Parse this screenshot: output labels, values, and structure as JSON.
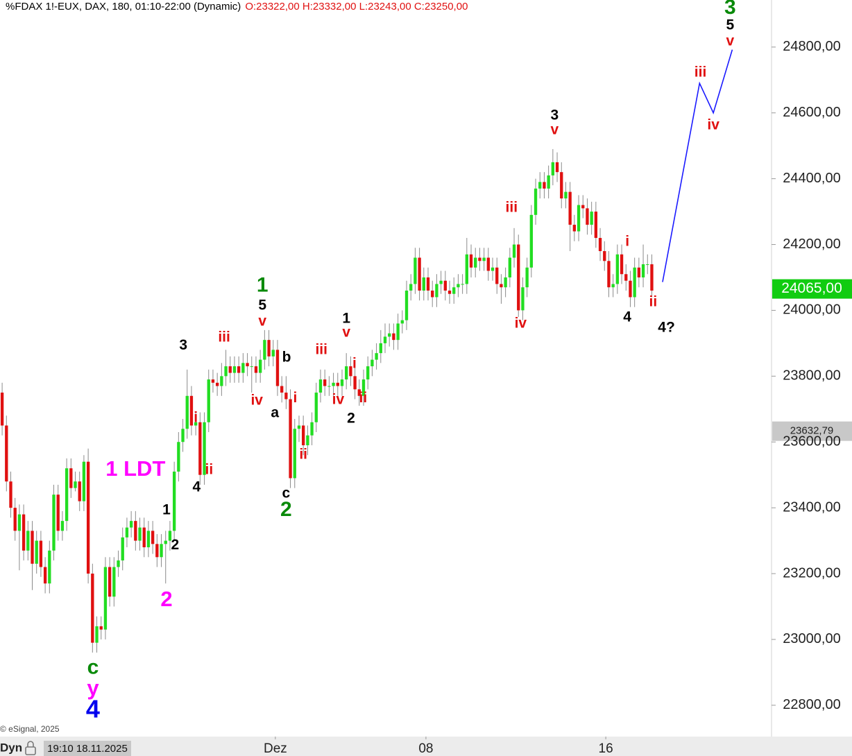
{
  "chart_data": {
    "type": "candlestick",
    "title": "%FDAX 1!-EUX, DAX, 180, 01:10-22:00 (Dynamic)",
    "ohlc_text": "O:23322,00 H:23332,00 L:23243,00 C:23250,00",
    "copyright": "© eSignal, 2025",
    "mode": "Dyn",
    "start_label": "19:10 18.11.2025",
    "up_color": "#22dd22",
    "down_color": "#e01010",
    "wick_color": "#8a8a8a",
    "xlim": [
      -0.5,
      178.5
    ],
    "ylim": [
      22709,
      24943
    ],
    "yticks": [
      {
        "value": 22800,
        "label": "22800,00"
      },
      {
        "value": 23000,
        "label": "23000,00"
      },
      {
        "value": 23200,
        "label": "23200,00"
      },
      {
        "value": 23400,
        "label": "23400,00"
      },
      {
        "value": 23600,
        "label": "23600,00"
      },
      {
        "value": 23800,
        "label": "23800,00"
      },
      {
        "value": 24000,
        "label": "24000,00"
      },
      {
        "value": 24200,
        "label": "24200,00"
      },
      {
        "value": 24400,
        "label": "24400,00"
      },
      {
        "value": 24600,
        "label": "24600,00"
      },
      {
        "value": 24800,
        "label": "24800,00"
      }
    ],
    "xticks": [
      {
        "value": 63.5,
        "label": "Dez"
      },
      {
        "value": 98.5,
        "label": "08"
      },
      {
        "value": 140.3,
        "label": "16"
      }
    ],
    "price_markers": [
      {
        "value": 24065,
        "label": "24065,00",
        "color": "#11cc11",
        "text_color": "#ffffff"
      },
      {
        "value": 23632.79,
        "label": "23632,79",
        "color": "#c8c8c8",
        "text_color": "#222222"
      }
    ],
    "ohlc": [
      [
        23750,
        23780,
        23620,
        23650
      ],
      [
        23650,
        23680,
        23450,
        23480
      ],
      [
        23480,
        23510,
        23370,
        23400
      ],
      [
        23400,
        23430,
        23300,
        23330
      ],
      [
        23330,
        23410,
        23210,
        23380
      ],
      [
        23380,
        23410,
        23240,
        23270
      ],
      [
        23270,
        23360,
        23240,
        23330
      ],
      [
        23330,
        23360,
        23150,
        23230
      ],
      [
        23230,
        23330,
        23200,
        23300
      ],
      [
        23300,
        23330,
        23190,
        23220
      ],
      [
        23220,
        23250,
        23140,
        23170
      ],
      [
        23170,
        23300,
        23140,
        23270
      ],
      [
        23270,
        23470,
        23240,
        23440
      ],
      [
        23440,
        23470,
        23300,
        23330
      ],
      [
        23330,
        23390,
        23300,
        23360
      ],
      [
        23360,
        23550,
        23330,
        23520
      ],
      [
        23520,
        23550,
        23430,
        23460
      ],
      [
        23460,
        23510,
        23450,
        23480
      ],
      [
        23480,
        23510,
        23390,
        23420
      ],
      [
        23420,
        23560,
        23390,
        23540
      ],
      [
        23540,
        23580,
        23170,
        23200
      ],
      [
        23200,
        23230,
        22960,
        22990
      ],
      [
        22990,
        23070,
        22960,
        23040
      ],
      [
        23040,
        23070,
        23000,
        23030
      ],
      [
        23030,
        23250,
        23000,
        23220
      ],
      [
        23220,
        23250,
        23100,
        23130
      ],
      [
        23130,
        23250,
        23100,
        23220
      ],
      [
        23220,
        23270,
        23190,
        23240
      ],
      [
        23240,
        23340,
        23210,
        23310
      ],
      [
        23310,
        23370,
        23280,
        23340
      ],
      [
        23340,
        23390,
        23310,
        23360
      ],
      [
        23360,
        23390,
        23270,
        23300
      ],
      [
        23300,
        23370,
        23270,
        23340
      ],
      [
        23340,
        23370,
        23250,
        23280
      ],
      [
        23280,
        23360,
        23250,
        23330
      ],
      [
        23330,
        23360,
        23260,
        23290
      ],
      [
        23290,
        23320,
        23220,
        23250
      ],
      [
        23250,
        23320,
        23220,
        23290
      ],
      [
        23290,
        23330,
        23170,
        23300
      ],
      [
        23300,
        23360,
        23270,
        23330
      ],
      [
        23330,
        23540,
        23300,
        23510
      ],
      [
        23510,
        23630,
        23480,
        23600
      ],
      [
        23600,
        23670,
        23570,
        23640
      ],
      [
        23640,
        23820,
        23610,
        23740
      ],
      [
        23740,
        23770,
        23620,
        23650
      ],
      [
        23650,
        23690,
        23620,
        23660
      ],
      [
        23660,
        23690,
        23470,
        23500
      ],
      [
        23500,
        23690,
        23470,
        23660
      ],
      [
        23660,
        23820,
        23630,
        23790
      ],
      [
        23790,
        23820,
        23750,
        23780
      ],
      [
        23780,
        23810,
        23740,
        23770
      ],
      [
        23770,
        23840,
        23740,
        23800
      ],
      [
        23800,
        23880,
        23770,
        23830
      ],
      [
        23830,
        23860,
        23780,
        23810
      ],
      [
        23810,
        23860,
        23780,
        23830
      ],
      [
        23830,
        23860,
        23780,
        23810
      ],
      [
        23810,
        23870,
        23780,
        23840
      ],
      [
        23840,
        23870,
        23800,
        23830
      ],
      [
        23830,
        23860,
        23750,
        23830
      ],
      [
        23830,
        23860,
        23780,
        23810
      ],
      [
        23810,
        23880,
        23780,
        23850
      ],
      [
        23850,
        23940,
        23820,
        23910
      ],
      [
        23910,
        23940,
        23830,
        23860
      ],
      [
        23860,
        23910,
        23830,
        23880
      ],
      [
        23880,
        23910,
        23740,
        23770
      ],
      [
        23770,
        23800,
        23720,
        23750
      ],
      [
        23750,
        23800,
        23700,
        23730
      ],
      [
        23730,
        23760,
        23460,
        23490
      ],
      [
        23490,
        23670,
        23460,
        23640
      ],
      [
        23640,
        23680,
        23600,
        23650
      ],
      [
        23650,
        23680,
        23560,
        23590
      ],
      [
        23590,
        23650,
        23560,
        23620
      ],
      [
        23620,
        23690,
        23590,
        23660
      ],
      [
        23660,
        23780,
        23630,
        23750
      ],
      [
        23750,
        23820,
        23720,
        23790
      ],
      [
        23790,
        23820,
        23740,
        23770
      ],
      [
        23770,
        23800,
        23740,
        23770
      ],
      [
        23770,
        23810,
        23740,
        23780
      ],
      [
        23780,
        23810,
        23740,
        23770
      ],
      [
        23770,
        23820,
        23740,
        23790
      ],
      [
        23790,
        23870,
        23760,
        23830
      ],
      [
        23830,
        23860,
        23770,
        23800
      ],
      [
        23800,
        23830,
        23730,
        23760
      ],
      [
        23760,
        23790,
        23710,
        23740
      ],
      [
        23740,
        23820,
        23710,
        23790
      ],
      [
        23790,
        23860,
        23760,
        23830
      ],
      [
        23830,
        23880,
        23800,
        23850
      ],
      [
        23850,
        23900,
        23820,
        23870
      ],
      [
        23870,
        23940,
        23840,
        23900
      ],
      [
        23900,
        23960,
        23870,
        23920
      ],
      [
        23920,
        23960,
        23890,
        23930
      ],
      [
        23930,
        23960,
        23880,
        23910
      ],
      [
        23910,
        23990,
        23880,
        23960
      ],
      [
        23960,
        24000,
        23930,
        23970
      ],
      [
        23970,
        24090,
        23940,
        24060
      ],
      [
        24060,
        24110,
        24030,
        24080
      ],
      [
        24080,
        24190,
        24050,
        24160
      ],
      [
        24160,
        24190,
        24030,
        24060
      ],
      [
        24060,
        24130,
        24030,
        24100
      ],
      [
        24100,
        24130,
        24030,
        24060
      ],
      [
        24060,
        24090,
        24010,
        24040
      ],
      [
        24040,
        24110,
        24010,
        24080
      ],
      [
        24080,
        24120,
        24050,
        24090
      ],
      [
        24090,
        24120,
        24030,
        24060
      ],
      [
        24060,
        24090,
        24020,
        24050
      ],
      [
        24050,
        24100,
        24020,
        24070
      ],
      [
        24070,
        24110,
        24040,
        24080
      ],
      [
        24080,
        24110,
        24050,
        24080
      ],
      [
        24080,
        24220,
        24050,
        24170
      ],
      [
        24170,
        24200,
        24100,
        24130
      ],
      [
        24130,
        24190,
        24100,
        24160
      ],
      [
        24160,
        24190,
        24120,
        24150
      ],
      [
        24150,
        24190,
        24120,
        24160
      ],
      [
        24160,
        24190,
        24090,
        24120
      ],
      [
        24120,
        24160,
        24090,
        24130
      ],
      [
        24130,
        24160,
        24050,
        24080
      ],
      [
        24080,
        24110,
        24020,
        24070
      ],
      [
        24070,
        24130,
        24040,
        24100
      ],
      [
        24100,
        24190,
        24070,
        24160
      ],
      [
        24160,
        24250,
        24130,
        24200
      ],
      [
        24200,
        24230,
        23980,
        24000
      ],
      [
        24000,
        24100,
        23970,
        24070
      ],
      [
        24070,
        24160,
        24040,
        24130
      ],
      [
        24130,
        24320,
        24100,
        24290
      ],
      [
        24290,
        24400,
        24260,
        24370
      ],
      [
        24370,
        24420,
        24340,
        24390
      ],
      [
        24390,
        24420,
        24340,
        24370
      ],
      [
        24370,
        24440,
        24340,
        24410
      ],
      [
        24410,
        24490,
        24380,
        24450
      ],
      [
        24450,
        24480,
        24390,
        24420
      ],
      [
        24420,
        24450,
        24310,
        24340
      ],
      [
        24340,
        24390,
        24310,
        24360
      ],
      [
        24360,
        24390,
        24180,
        24260
      ],
      [
        24260,
        24290,
        24210,
        24240
      ],
      [
        24240,
        24350,
        24210,
        24320
      ],
      [
        24320,
        24350,
        24280,
        24310
      ],
      [
        24310,
        24340,
        24230,
        24260
      ],
      [
        24260,
        24330,
        24230,
        24300
      ],
      [
        24300,
        24330,
        24190,
        24220
      ],
      [
        24220,
        24250,
        24150,
        24180
      ],
      [
        24180,
        24210,
        24120,
        24150
      ],
      [
        24150,
        24180,
        24040,
        24070
      ],
      [
        24070,
        24110,
        24040,
        24080
      ],
      [
        24080,
        24200,
        24050,
        24170
      ],
      [
        24170,
        24200,
        24080,
        24110
      ],
      [
        24110,
        24140,
        24060,
        24090
      ],
      [
        24090,
        24120,
        24010,
        24040
      ],
      [
        24040,
        24160,
        24010,
        24130
      ],
      [
        24130,
        24160,
        24070,
        24100
      ],
      [
        24100,
        24200,
        24070,
        24140
      ],
      [
        24140,
        24170,
        24110,
        24140
      ],
      [
        24140,
        24170,
        24040,
        24060
      ]
    ],
    "projection": {
      "color": "#1a1aff",
      "x": [
        153.5,
        162.1,
        165.3,
        169.7
      ],
      "y": [
        24086,
        24690,
        24600,
        24792
      ]
    },
    "annotations": [
      {
        "text": "3",
        "color": "#0a8a0a",
        "x": 169.2,
        "y": 24918
      },
      {
        "text": "5",
        "color": "#000000",
        "x": 169.2,
        "y": 24865
      },
      {
        "text": "v",
        "color": "#e01010",
        "x": 169.2,
        "y": 24817
      },
      {
        "text": "iii",
        "color": "#e01010",
        "x": 162.3,
        "y": 24722
      },
      {
        "text": "iv",
        "color": "#e01010",
        "x": 165.3,
        "y": 24562
      },
      {
        "text": "3",
        "color": "#000000",
        "x": 128.4,
        "y": 24591
      },
      {
        "text": "v",
        "color": "#e01010",
        "x": 128.4,
        "y": 24547
      },
      {
        "text": "iii",
        "color": "#e01010",
        "x": 118.4,
        "y": 24311
      },
      {
        "text": "iv",
        "color": "#e01010",
        "x": 120.5,
        "y": 23959
      },
      {
        "text": "i",
        "color": "#e01010",
        "x": 145.3,
        "y": 24208
      },
      {
        "text": "ii",
        "color": "#e01010",
        "x": 151.3,
        "y": 24024
      },
      {
        "text": "4",
        "color": "#000000",
        "x": 145.3,
        "y": 23978
      },
      {
        "text": "4?",
        "color": "#000000",
        "x": 154.4,
        "y": 23946
      },
      {
        "text": "1",
        "color": "#0a8a0a",
        "x": 60.5,
        "y": 24073
      },
      {
        "text": "5",
        "color": "#000000",
        "x": 60.5,
        "y": 24014
      },
      {
        "text": "v",
        "color": "#e01010",
        "x": 60.5,
        "y": 23965
      },
      {
        "text": "iii",
        "color": "#e01010",
        "x": 51.6,
        "y": 23917
      },
      {
        "text": "iv",
        "color": "#e01010",
        "x": 59.2,
        "y": 23725
      },
      {
        "text": "b",
        "color": "#000000",
        "x": 66.1,
        "y": 23856
      },
      {
        "text": "a",
        "color": "#000000",
        "x": 63.4,
        "y": 23687
      },
      {
        "text": "i",
        "color": "#e01010",
        "x": 68.1,
        "y": 23732
      },
      {
        "text": "ii",
        "color": "#e01010",
        "x": 70.0,
        "y": 23561
      },
      {
        "text": "c",
        "color": "#000000",
        "x": 66.0,
        "y": 23443
      },
      {
        "text": "2",
        "color": "#0a8a0a",
        "x": 66.0,
        "y": 23392
      },
      {
        "text": "1",
        "color": "#000000",
        "x": 80.0,
        "y": 23974
      },
      {
        "text": "v",
        "color": "#e01010",
        "x": 80.0,
        "y": 23932
      },
      {
        "text": "iii",
        "color": "#e01010",
        "x": 74.2,
        "y": 23879
      },
      {
        "text": "i",
        "color": "#e01010",
        "x": 81.9,
        "y": 23837
      },
      {
        "text": "iv",
        "color": "#e01010",
        "x": 78.1,
        "y": 23727
      },
      {
        "text": "ii",
        "color": "#e01010",
        "x": 83.9,
        "y": 23732
      },
      {
        "text": "2",
        "color": "#000000",
        "x": 81.1,
        "y": 23670
      },
      {
        "text": "3",
        "color": "#000000",
        "x": 42.1,
        "y": 23892
      },
      {
        "text": "i",
        "color": "#e01010",
        "x": 45.0,
        "y": 23672
      },
      {
        "text": "ii",
        "color": "#e01010",
        "x": 48.1,
        "y": 23514
      },
      {
        "text": "4",
        "color": "#000000",
        "x": 45.2,
        "y": 23462
      },
      {
        "text": "1 LDT",
        "color": "#ff00ff",
        "x": 31.0,
        "y": 23514
      },
      {
        "text": "1",
        "color": "#000000",
        "x": 38.2,
        "y": 23392
      },
      {
        "text": "2",
        "color": "#000000",
        "x": 40.2,
        "y": 23285
      },
      {
        "text": "2",
        "color": "#ff00ff",
        "x": 38.2,
        "y": 23118
      },
      {
        "text": "c",
        "color": "#0a8a0a",
        "x": 21.1,
        "y": 22912
      },
      {
        "text": "y",
        "color": "#ff00ff",
        "x": 21.1,
        "y": 22849
      },
      {
        "text": "4",
        "color": "#0000ee",
        "x": 21.1,
        "y": 22783
      }
    ]
  }
}
